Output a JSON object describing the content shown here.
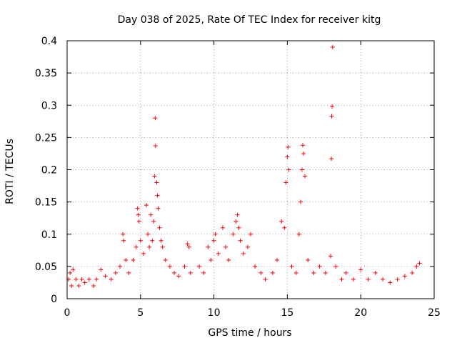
{
  "chart_data": {
    "type": "scatter",
    "title": "Day 038 of 2025, Rate Of TEC Index for receiver kitg",
    "xlabel": "GPS time / hours",
    "ylabel": "ROTI / TECUs",
    "xlim": [
      0,
      25
    ],
    "ylim": [
      0,
      0.4
    ],
    "x_ticks": [
      0,
      5,
      10,
      15,
      20,
      25
    ],
    "x_tick_labels": [
      "0",
      "5",
      "10",
      "15",
      "20",
      "25"
    ],
    "y_ticks": [
      0,
      0.05,
      0.1,
      0.15,
      0.2,
      0.25,
      0.3,
      0.35,
      0.4
    ],
    "y_tick_labels": [
      "0",
      "0.05",
      "0.1",
      "0.15",
      "0.2",
      "0.25",
      "0.3",
      "0.35",
      "0.4"
    ],
    "grid": true,
    "marker": "+",
    "color": "#ff0000",
    "series": [
      {
        "name": "ROTI",
        "points": [
          [
            0.1,
            0.03
          ],
          [
            0.2,
            0.04
          ],
          [
            0.3,
            0.02
          ],
          [
            0.4,
            0.045
          ],
          [
            0.6,
            0.03
          ],
          [
            0.8,
            0.02
          ],
          [
            1.0,
            0.03
          ],
          [
            1.2,
            0.025
          ],
          [
            1.5,
            0.03
          ],
          [
            1.8,
            0.02
          ],
          [
            2.0,
            0.03
          ],
          [
            2.3,
            0.045
          ],
          [
            2.6,
            0.035
          ],
          [
            3.0,
            0.03
          ],
          [
            3.3,
            0.04
          ],
          [
            3.6,
            0.05
          ],
          [
            3.8,
            0.1
          ],
          [
            3.85,
            0.09
          ],
          [
            4.0,
            0.06
          ],
          [
            4.2,
            0.04
          ],
          [
            4.5,
            0.06
          ],
          [
            4.7,
            0.08
          ],
          [
            4.8,
            0.14
          ],
          [
            4.85,
            0.13
          ],
          [
            4.9,
            0.12
          ],
          [
            5.0,
            0.09
          ],
          [
            5.2,
            0.07
          ],
          [
            5.4,
            0.145
          ],
          [
            5.5,
            0.1
          ],
          [
            5.6,
            0.08
          ],
          [
            5.7,
            0.13
          ],
          [
            5.8,
            0.09
          ],
          [
            5.9,
            0.12
          ],
          [
            5.95,
            0.19
          ],
          [
            6.0,
            0.28
          ],
          [
            6.02,
            0.237
          ],
          [
            6.1,
            0.18
          ],
          [
            6.15,
            0.16
          ],
          [
            6.2,
            0.14
          ],
          [
            6.3,
            0.11
          ],
          [
            6.4,
            0.09
          ],
          [
            6.5,
            0.08
          ],
          [
            6.7,
            0.06
          ],
          [
            7.0,
            0.05
          ],
          [
            7.3,
            0.04
          ],
          [
            7.6,
            0.035
          ],
          [
            8.0,
            0.05
          ],
          [
            8.2,
            0.085
          ],
          [
            8.3,
            0.08
          ],
          [
            8.4,
            0.04
          ],
          [
            9.0,
            0.05
          ],
          [
            9.3,
            0.04
          ],
          [
            9.6,
            0.08
          ],
          [
            9.8,
            0.06
          ],
          [
            10.0,
            0.09
          ],
          [
            10.1,
            0.1
          ],
          [
            10.3,
            0.07
          ],
          [
            10.6,
            0.11
          ],
          [
            10.8,
            0.08
          ],
          [
            11.0,
            0.06
          ],
          [
            11.3,
            0.1
          ],
          [
            11.5,
            0.12
          ],
          [
            11.6,
            0.13
          ],
          [
            11.7,
            0.11
          ],
          [
            11.8,
            0.09
          ],
          [
            12.0,
            0.07
          ],
          [
            12.3,
            0.08
          ],
          [
            12.5,
            0.1
          ],
          [
            12.8,
            0.05
          ],
          [
            13.2,
            0.04
          ],
          [
            13.5,
            0.03
          ],
          [
            14.0,
            0.04
          ],
          [
            14.3,
            0.06
          ],
          [
            14.6,
            0.12
          ],
          [
            14.8,
            0.11
          ],
          [
            14.9,
            0.18
          ],
          [
            15.0,
            0.22
          ],
          [
            15.05,
            0.235
          ],
          [
            15.1,
            0.2
          ],
          [
            15.3,
            0.05
          ],
          [
            15.6,
            0.04
          ],
          [
            15.8,
            0.1
          ],
          [
            15.9,
            0.15
          ],
          [
            16.0,
            0.2
          ],
          [
            16.05,
            0.238
          ],
          [
            16.1,
            0.225
          ],
          [
            16.2,
            0.19
          ],
          [
            16.4,
            0.06
          ],
          [
            16.8,
            0.04
          ],
          [
            17.2,
            0.05
          ],
          [
            17.6,
            0.04
          ],
          [
            17.95,
            0.066
          ],
          [
            18.0,
            0.217
          ],
          [
            18.02,
            0.283
          ],
          [
            18.05,
            0.298
          ],
          [
            18.08,
            0.39
          ],
          [
            18.3,
            0.05
          ],
          [
            18.7,
            0.03
          ],
          [
            19.0,
            0.04
          ],
          [
            19.5,
            0.03
          ],
          [
            20.0,
            0.045
          ],
          [
            20.5,
            0.03
          ],
          [
            21.0,
            0.04
          ],
          [
            21.5,
            0.03
          ],
          [
            22.0,
            0.025
          ],
          [
            22.5,
            0.03
          ],
          [
            23.0,
            0.035
          ],
          [
            23.5,
            0.04
          ],
          [
            23.8,
            0.05
          ],
          [
            24.0,
            0.055
          ]
        ]
      }
    ]
  }
}
